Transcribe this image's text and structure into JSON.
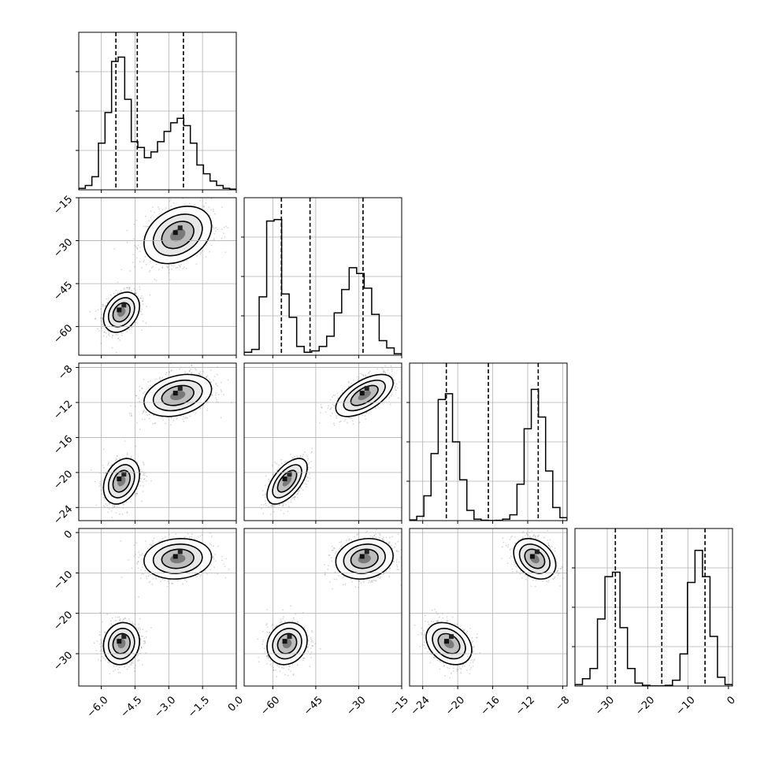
{
  "chart_data": {
    "type": "corner",
    "grid": true,
    "parameters": [
      {
        "range": [
          -7.0,
          0.0
        ],
        "ticks": [
          -6.0,
          -4.5,
          -3.0,
          -1.5,
          0.0
        ],
        "tick_labels": [
          "−6.0",
          "−4.5",
          "−3.0",
          "−1.5",
          "0.0"
        ],
        "quantile_lines": [
          -5.35,
          -4.4,
          -2.35
        ],
        "hist_bins": [
          0.01,
          0.03,
          0.09,
          0.32,
          0.53,
          0.88,
          0.91,
          0.62,
          0.33,
          0.29,
          0.22,
          0.26,
          0.33,
          0.4,
          0.46,
          0.49,
          0.44,
          0.32,
          0.17,
          0.11,
          0.06,
          0.03,
          0.01,
          0.005
        ],
        "hist_ymax": 1.0,
        "modes": [
          {
            "mean": -5.1,
            "sd": 0.4
          },
          {
            "mean": -2.6,
            "sd": 0.75
          }
        ]
      },
      {
        "range": [
          -70,
          -15
        ],
        "ticks": [
          -60,
          -45,
          -30,
          -15
        ],
        "tick_labels": [
          "−60",
          "−45",
          "−30",
          "−15"
        ],
        "quantile_lines": [
          -57.0,
          -47.0,
          -28.5
        ],
        "hist_bins": [
          0.02,
          0.04,
          0.4,
          0.92,
          0.93,
          0.42,
          0.26,
          0.06,
          0.02,
          0.03,
          0.06,
          0.13,
          0.29,
          0.45,
          0.6,
          0.56,
          0.46,
          0.28,
          0.1,
          0.05,
          0.01
        ],
        "hist_ymax": 1.0,
        "modes": [
          {
            "mean": -55.0,
            "sd": 3.5
          },
          {
            "mean": -28.0,
            "sd": 5.0
          }
        ]
      },
      {
        "range": [
          -25.5,
          -7.5
        ],
        "ticks": [
          -24,
          -20,
          -16,
          -12,
          -8
        ],
        "tick_labels": [
          "−24",
          "−20",
          "−16",
          "−12",
          "−8"
        ],
        "quantile_lines": [
          -21.3,
          -16.5,
          -10.8
        ],
        "hist_bins": [
          0.005,
          0.03,
          0.17,
          0.46,
          0.83,
          0.87,
          0.54,
          0.28,
          0.07,
          0.01,
          0.003,
          0.001,
          0.002,
          0.01,
          0.04,
          0.25,
          0.63,
          0.9,
          0.71,
          0.34,
          0.09,
          0.02
        ],
        "hist_ymax": 1.0,
        "modes": [
          {
            "mean": -21.0,
            "sd": 1.3
          },
          {
            "mean": -11.2,
            "sd": 1.2
          }
        ]
      },
      {
        "range": [
          -38,
          1
        ],
        "ticks": [
          -30,
          -20,
          -10,
          0
        ],
        "tick_labels": [
          "−30",
          "−20",
          "−10",
          "0"
        ],
        "quantile_lines": [
          -28.0,
          -16.5,
          -5.8
        ],
        "hist_bins": [
          0.01,
          0.05,
          0.12,
          0.46,
          0.75,
          0.78,
          0.4,
          0.12,
          0.02,
          0.005,
          0.001,
          0.001,
          0.005,
          0.04,
          0.22,
          0.71,
          0.93,
          0.75,
          0.34,
          0.06,
          0.01
        ],
        "hist_ymax": 1.0,
        "modes": [
          {
            "mean": -27.5,
            "sd": 2.6
          },
          {
            "mean": -6.5,
            "sd": 2.5
          }
        ]
      }
    ],
    "correlations": {
      "1-0": 0.3,
      "2-0": 0.3,
      "2-1": 0.6,
      "3-0": 0.1,
      "3-1": 0.15,
      "3-2": -0.3
    }
  }
}
